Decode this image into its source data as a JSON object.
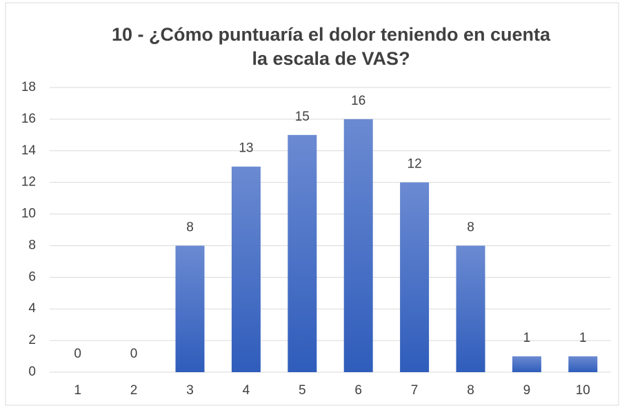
{
  "chart_data": {
    "type": "bar",
    "title": [
      "10 - ¿Cómo puntuaría el dolor teniendo en cuenta",
      "la escala de VAS?"
    ],
    "categories": [
      "1",
      "2",
      "3",
      "4",
      "5",
      "6",
      "7",
      "8",
      "9",
      "10"
    ],
    "values": [
      0,
      0,
      8,
      13,
      15,
      16,
      12,
      8,
      1,
      1
    ],
    "color": "#4472c4",
    "ylim": [
      0,
      18
    ],
    "yticks": [
      0,
      2,
      4,
      6,
      8,
      10,
      12,
      14,
      16,
      18
    ],
    "grid": true,
    "data_labels": true
  }
}
